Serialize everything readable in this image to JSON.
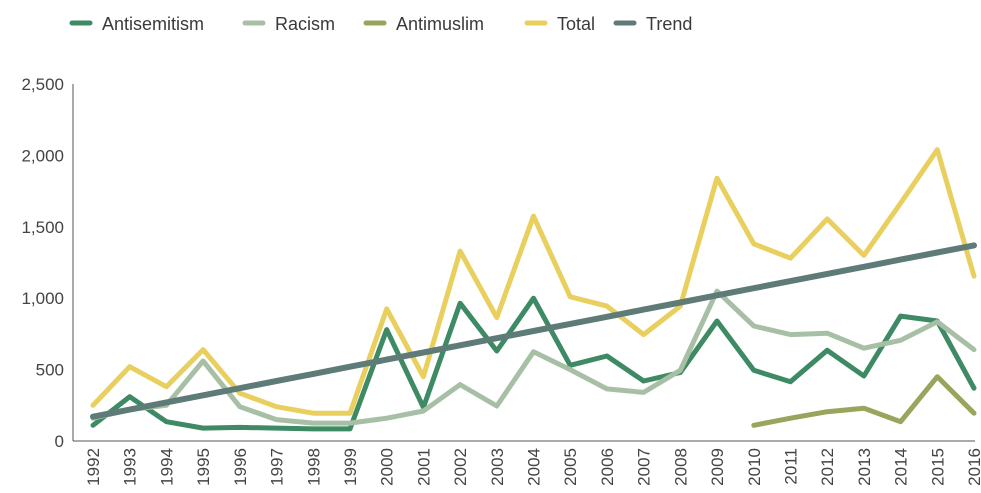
{
  "chart_data": {
    "type": "line",
    "title": "",
    "xlabel": "",
    "ylabel": "",
    "ylim": [
      0,
      2500
    ],
    "yticks": [
      0,
      500,
      1000,
      1500,
      2000,
      2500
    ],
    "ytick_labels": [
      "0",
      "500",
      "1,000",
      "1,500",
      "2,000",
      "2,500"
    ],
    "grid": false,
    "legend_position": "top-left",
    "x": [
      "1992",
      "1993",
      "1994",
      "1995",
      "1996",
      "1997",
      "1998",
      "1999",
      "2000",
      "2001",
      "2002",
      "2003",
      "2004",
      "2005",
      "2006",
      "2007",
      "2008",
      "2009",
      "2010",
      "2011",
      "2012",
      "2013",
      "2014",
      "2015",
      "2016"
    ],
    "series": [
      {
        "name": "Antisemitism",
        "color": "#3d8a65",
        "values": [
          110,
          310,
          135,
          90,
          95,
          90,
          85,
          85,
          780,
          235,
          965,
          630,
          1000,
          530,
          595,
          420,
          480,
          840,
          495,
          415,
          635,
          455,
          875,
          840,
          370
        ]
      },
      {
        "name": "Racism",
        "color": "#a7c0a5",
        "values": [
          160,
          220,
          250,
          560,
          240,
          150,
          125,
          125,
          160,
          210,
          395,
          245,
          625,
          500,
          365,
          340,
          495,
          1050,
          805,
          745,
          755,
          650,
          705,
          835,
          640
        ]
      },
      {
        "name": "Antimuslim",
        "color": "#9aa45c",
        "values": [
          null,
          null,
          null,
          null,
          null,
          null,
          null,
          null,
          null,
          null,
          null,
          null,
          null,
          null,
          null,
          null,
          null,
          null,
          110,
          160,
          205,
          230,
          135,
          450,
          195
        ]
      },
      {
        "name": "Total",
        "color": "#e8cf5e",
        "values": [
          250,
          520,
          380,
          640,
          335,
          240,
          195,
          195,
          925,
          450,
          1330,
          865,
          1575,
          1010,
          945,
          745,
          945,
          1840,
          1380,
          1280,
          1555,
          1300,
          1665,
          2040,
          1155
        ]
      },
      {
        "name": "Trend",
        "color": "#5e7b78",
        "values": [
          170,
          220,
          270,
          320,
          370,
          420,
          470,
          520,
          570,
          620,
          670,
          720,
          770,
          820,
          870,
          920,
          970,
          1020,
          1070,
          1120,
          1170,
          1220,
          1270,
          1320,
          1370
        ]
      }
    ]
  }
}
